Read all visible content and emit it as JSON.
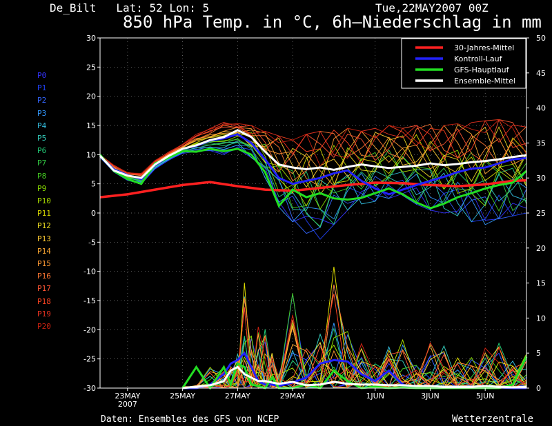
{
  "header": {
    "station": "De_Bilt   Lat: 52 Lon: 5",
    "run": "Tue,22MAY2007 00Z",
    "title": "850 hPa Temp. in °C, 6h–Niederschlag in mm"
  },
  "footer": {
    "source": "Daten: Ensembles des GFS von NCEP",
    "brand": "Wetterzentrale"
  },
  "members": [
    {
      "label": "P0",
      "color": "#3333ff"
    },
    {
      "label": "P1",
      "color": "#2244ff"
    },
    {
      "label": "P2",
      "color": "#3366ff"
    },
    {
      "label": "P3",
      "color": "#3399ff"
    },
    {
      "label": "P4",
      "color": "#33bbdd"
    },
    {
      "label": "P5",
      "color": "#33ccbb"
    },
    {
      "label": "P6",
      "color": "#22cc77"
    },
    {
      "label": "P7",
      "color": "#33cc44"
    },
    {
      "label": "P8",
      "color": "#44cc22"
    },
    {
      "label": "P9",
      "color": "#88dd00"
    },
    {
      "label": "P10",
      "color": "#aadd00"
    },
    {
      "label": "P11",
      "color": "#dddd00"
    },
    {
      "label": "P12",
      "color": "#eedd22"
    },
    {
      "label": "P13",
      "color": "#ffcc33"
    },
    {
      "label": "P14",
      "color": "#ffaa33"
    },
    {
      "label": "P15",
      "color": "#ff9933"
    },
    {
      "label": "P16",
      "color": "#ff7733"
    },
    {
      "label": "P17",
      "color": "#ff5533"
    },
    {
      "label": "P18",
      "color": "#ff4422"
    },
    {
      "label": "P19",
      "color": "#ee3322"
    },
    {
      "label": "P20",
      "color": "#cc2211"
    }
  ],
  "chart_data": {
    "type": "line",
    "grid": true,
    "left_axis": {
      "label": "",
      "range": [
        -30,
        30
      ],
      "ticks": [
        -30,
        -25,
        -20,
        -15,
        -10,
        -5,
        0,
        5,
        10,
        15,
        20,
        25,
        30
      ]
    },
    "right_axis": {
      "label": "",
      "range": [
        0,
        50
      ],
      "ticks": [
        0,
        5,
        10,
        15,
        20,
        25,
        30,
        35,
        40,
        45,
        50
      ]
    },
    "x_range_hours": [
      0,
      372
    ],
    "x_ticks": [
      {
        "label": "23MAY",
        "sub": "2007",
        "hour": 24
      },
      {
        "label": "25MAY",
        "hour": 72
      },
      {
        "label": "27MAY",
        "hour": 120
      },
      {
        "label": "29MAY",
        "hour": 168
      },
      {
        "label": "1JUN",
        "hour": 240
      },
      {
        "label": "3JUN",
        "hour": 288
      },
      {
        "label": "5JUN",
        "hour": 336
      }
    ],
    "legend": {
      "position": "top-right"
    },
    "series": [
      {
        "name": "30-Jahres-Mittel",
        "axis": "left",
        "color": "#ff2020",
        "width": 3.5,
        "x": [
          0,
          24,
          48,
          72,
          96,
          120,
          144,
          168,
          192,
          216,
          240,
          264,
          288,
          312,
          336,
          360,
          372
        ],
        "y": [
          2.7,
          3.2,
          4.0,
          4.8,
          5.3,
          4.6,
          4.0,
          3.8,
          4.3,
          4.8,
          5.2,
          5.1,
          4.8,
          4.6,
          4.9,
          5.5,
          5.6
        ]
      },
      {
        "name": "Kontroll-Lauf",
        "axis": "left",
        "color": "#2222ff",
        "width": 3,
        "x": [
          0,
          12,
          24,
          36,
          48,
          60,
          72,
          84,
          96,
          108,
          120,
          132,
          144,
          156,
          168,
          180,
          192,
          204,
          216,
          228,
          240,
          252,
          264,
          276,
          288,
          300,
          312,
          324,
          336,
          348,
          360,
          372
        ],
        "y": [
          9.8,
          7.5,
          6.5,
          5.8,
          8.2,
          9.6,
          11.0,
          11.5,
          12.4,
          12.8,
          13.5,
          12.0,
          9.2,
          6.0,
          5.0,
          5.5,
          6.0,
          6.8,
          7.3,
          5.5,
          4.2,
          3.2,
          4.0,
          4.8,
          5.5,
          6.2,
          7.0,
          7.6,
          7.8,
          8.5,
          9.2,
          9.4
        ]
      },
      {
        "name": "GFS-Hauptlauf",
        "axis": "left",
        "color": "#22dd22",
        "width": 3,
        "x": [
          0,
          12,
          24,
          36,
          48,
          60,
          72,
          84,
          96,
          108,
          120,
          132,
          144,
          156,
          168,
          180,
          192,
          204,
          216,
          228,
          240,
          252,
          264,
          276,
          288,
          300,
          312,
          324,
          336,
          348,
          360,
          372
        ],
        "y": [
          10.0,
          7.2,
          5.8,
          5.0,
          8.5,
          9.5,
          10.6,
          10.5,
          11.0,
          10.6,
          11.0,
          10.0,
          7.0,
          1.2,
          4.0,
          2.7,
          3.4,
          2.5,
          2.3,
          2.6,
          3.4,
          4.2,
          3.2,
          1.8,
          0.8,
          1.6,
          2.7,
          3.4,
          4.2,
          4.8,
          5.2,
          7.2
        ]
      },
      {
        "name": "Ensemble-Mittel",
        "axis": "left",
        "color": "#ffffff",
        "width": 3,
        "x": [
          0,
          12,
          24,
          36,
          48,
          60,
          72,
          84,
          96,
          108,
          120,
          132,
          144,
          156,
          168,
          180,
          192,
          204,
          216,
          228,
          240,
          252,
          264,
          276,
          288,
          300,
          312,
          324,
          336,
          348,
          360,
          372
        ],
        "y": [
          9.8,
          7.3,
          6.4,
          6.0,
          8.3,
          9.8,
          11.0,
          11.6,
          12.5,
          13.0,
          14.2,
          13.0,
          10.5,
          8.3,
          7.8,
          7.5,
          7.8,
          7.4,
          7.9,
          8.3,
          8.0,
          7.7,
          7.9,
          8.1,
          8.5,
          8.2,
          8.4,
          8.7,
          8.9,
          9.2,
          9.6,
          9.9
        ]
      }
    ],
    "ensemble_spread": {
      "axis": "left",
      "x": [
        0,
        12,
        24,
        36,
        48,
        60,
        72,
        84,
        96,
        108,
        120,
        132,
        144,
        156,
        168,
        180,
        192,
        204,
        216,
        228,
        240,
        252,
        264,
        276,
        288,
        300,
        312,
        324,
        336,
        348,
        360,
        372
      ],
      "min": [
        9.5,
        7.0,
        5.6,
        5.0,
        7.5,
        9.0,
        10.2,
        10.5,
        10.5,
        10.0,
        11.0,
        9.5,
        6.0,
        1.0,
        -1.5,
        -3.5,
        -4.5,
        -2.0,
        0.5,
        1.5,
        2.0,
        2.5,
        3.0,
        1.5,
        0.5,
        0.0,
        -0.5,
        -1.5,
        -2.0,
        -1.0,
        -0.5,
        0.0
      ],
      "max": [
        10.0,
        8.2,
        7.0,
        6.8,
        9.0,
        10.5,
        11.8,
        13.5,
        14.5,
        15.8,
        15.5,
        15.0,
        14.0,
        13.2,
        12.5,
        13.5,
        14.0,
        14.2,
        14.5,
        14.0,
        14.5,
        15.0,
        14.5,
        15.0,
        15.2,
        15.0,
        15.3,
        15.5,
        15.8,
        16.0,
        15.5,
        14.8
      ]
    },
    "precipitation": {
      "axis": "right",
      "x": [
        72,
        84,
        96,
        108,
        114,
        120,
        126,
        132,
        138,
        144,
        150,
        156,
        168,
        180,
        192,
        204,
        216,
        228,
        240,
        252,
        264,
        276,
        288,
        300,
        312,
        324,
        336,
        348,
        360,
        372
      ],
      "max": [
        0.3,
        0.5,
        3.0,
        4.0,
        3.2,
        5.5,
        16.5,
        8.0,
        10.0,
        8.5,
        7.0,
        2.0,
        17.5,
        6.0,
        8.5,
        19.5,
        8.5,
        7.5,
        3.5,
        8.0,
        7.0,
        4.0,
        7.0,
        6.5,
        5.0,
        4.5,
        7.0,
        6.5,
        5.0,
        5.0
      ],
      "ensemble_mean": [
        0.0,
        0.2,
        0.4,
        1.0,
        2.5,
        3.0,
        2.0,
        1.5,
        1.0,
        1.0,
        0.8,
        0.6,
        0.9,
        0.4,
        0.5,
        0.9,
        0.6,
        0.5,
        0.5,
        0.4,
        0.4,
        0.3,
        0.3,
        0.2,
        0.2,
        0.2,
        0.3,
        0.2,
        0.1,
        0.2
      ],
      "control": [
        0.0,
        0.0,
        0.5,
        2.0,
        3.5,
        4.0,
        5.0,
        3.0,
        1.0,
        0.5,
        0.5,
        0.3,
        0.8,
        1.5,
        3.5,
        4.0,
        3.8,
        2.0,
        1.0,
        2.5,
        0.5,
        0.0,
        0.3,
        0.2,
        0.1,
        0.0,
        0.2,
        0.1,
        0.0,
        0.0
      ],
      "gfs": [
        0.0,
        3.0,
        0.0,
        3.0,
        0.5,
        3.5,
        3.0,
        0.5,
        0.3,
        0.0,
        1.5,
        0.0,
        0.0,
        0.5,
        0.0,
        2.5,
        1.0,
        0.0,
        0.2,
        0.0,
        0.1,
        0.0,
        0.0,
        0.0,
        0.0,
        0.0,
        0.0,
        0.0,
        0.5,
        4.5
      ]
    }
  }
}
